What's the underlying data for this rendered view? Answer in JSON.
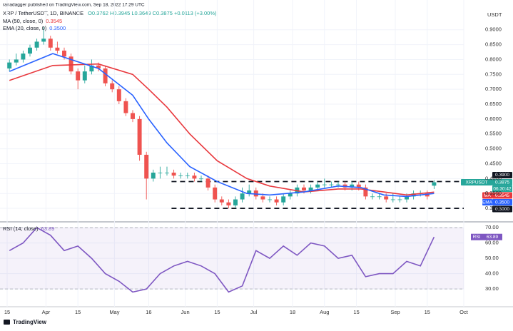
{
  "header": {
    "publisher": "ranadagger published on TradingView.com, Sep 18, 2022 17:29 UTC",
    "symbol": "XRP / TetherUSDT, 1D, BINANCE",
    "ohlc": "O0.3762 H0.3945 L0.3649 C0.3875 +0.0113 (+3.00%)",
    "currency": "USDT",
    "footer": "TradingView"
  },
  "chart_data": [
    {
      "type": "candlestick",
      "x": [
        1,
        4,
        7,
        10,
        13,
        16,
        19,
        22,
        25,
        28,
        31,
        34,
        37,
        40,
        43,
        46,
        49,
        52,
        55,
        58,
        61,
        64,
        67,
        70,
        73,
        76,
        79,
        82,
        85,
        88,
        91,
        94,
        97,
        100,
        103,
        106,
        109,
        112,
        115,
        118,
        121,
        124,
        127,
        130,
        133,
        136,
        139,
        142,
        145,
        148,
        151,
        154,
        157,
        160,
        163,
        166,
        169,
        172,
        175,
        178,
        181,
        184,
        187
      ],
      "open": [
        0.77,
        0.79,
        0.8,
        0.82,
        0.84,
        0.86,
        0.87,
        0.84,
        0.83,
        0.81,
        0.76,
        0.73,
        0.76,
        0.78,
        0.77,
        0.72,
        0.7,
        0.66,
        0.62,
        0.6,
        0.48,
        0.4,
        0.42,
        0.42,
        0.42,
        0.41,
        0.41,
        0.41,
        0.4,
        0.4,
        0.37,
        0.33,
        0.32,
        0.31,
        0.33,
        0.35,
        0.36,
        0.34,
        0.33,
        0.33,
        0.32,
        0.34,
        0.35,
        0.37,
        0.36,
        0.37,
        0.38,
        0.38,
        0.38,
        0.38,
        0.37,
        0.38,
        0.37,
        0.34,
        0.34,
        0.34,
        0.33,
        0.33,
        0.33,
        0.34,
        0.35,
        0.35,
        0.3762
      ],
      "high": [
        0.8,
        0.82,
        0.83,
        0.85,
        0.87,
        0.91,
        0.88,
        0.86,
        0.84,
        0.82,
        0.77,
        0.78,
        0.8,
        0.79,
        0.78,
        0.73,
        0.71,
        0.67,
        0.63,
        0.61,
        0.49,
        0.43,
        0.44,
        0.44,
        0.43,
        0.42,
        0.42,
        0.42,
        0.41,
        0.41,
        0.38,
        0.34,
        0.33,
        0.34,
        0.37,
        0.38,
        0.37,
        0.35,
        0.34,
        0.34,
        0.35,
        0.36,
        0.38,
        0.38,
        0.38,
        0.39,
        0.4,
        0.39,
        0.39,
        0.39,
        0.39,
        0.39,
        0.38,
        0.35,
        0.35,
        0.35,
        0.35,
        0.34,
        0.35,
        0.36,
        0.36,
        0.36,
        0.3945
      ],
      "low": [
        0.76,
        0.78,
        0.79,
        0.81,
        0.83,
        0.85,
        0.83,
        0.82,
        0.8,
        0.75,
        0.7,
        0.72,
        0.75,
        0.76,
        0.71,
        0.69,
        0.65,
        0.61,
        0.59,
        0.46,
        0.33,
        0.39,
        0.4,
        0.41,
        0.4,
        0.4,
        0.4,
        0.39,
        0.39,
        0.36,
        0.32,
        0.31,
        0.3,
        0.3,
        0.32,
        0.34,
        0.33,
        0.32,
        0.32,
        0.31,
        0.31,
        0.33,
        0.34,
        0.35,
        0.35,
        0.36,
        0.37,
        0.37,
        0.37,
        0.36,
        0.36,
        0.36,
        0.33,
        0.33,
        0.33,
        0.32,
        0.32,
        0.32,
        0.32,
        0.33,
        0.34,
        0.33,
        0.3649
      ],
      "close": [
        0.79,
        0.8,
        0.82,
        0.84,
        0.86,
        0.87,
        0.84,
        0.83,
        0.81,
        0.76,
        0.73,
        0.76,
        0.78,
        0.77,
        0.72,
        0.7,
        0.66,
        0.62,
        0.6,
        0.48,
        0.4,
        0.42,
        0.42,
        0.42,
        0.41,
        0.41,
        0.41,
        0.4,
        0.4,
        0.37,
        0.33,
        0.32,
        0.31,
        0.33,
        0.35,
        0.36,
        0.34,
        0.33,
        0.33,
        0.32,
        0.34,
        0.35,
        0.37,
        0.36,
        0.37,
        0.38,
        0.38,
        0.38,
        0.38,
        0.37,
        0.38,
        0.37,
        0.34,
        0.34,
        0.34,
        0.33,
        0.33,
        0.33,
        0.34,
        0.35,
        0.35,
        0.34,
        0.3875
      ],
      "up_color": "#26a69a",
      "down_color": "#ef5350",
      "price_tag": {
        "name": "XRPUSDT",
        "value": 0.3875,
        "label": "0.3875",
        "timer": "06:30:42"
      },
      "series": [
        {
          "name": "MA (50, close, 0)",
          "short_name": "MA",
          "last_label": "0.3545",
          "color": "#e8383d",
          "x": [
            1,
            20,
            40,
            55,
            62,
            70,
            80,
            92,
            105,
            115,
            130,
            145,
            155,
            165,
            175,
            187
          ],
          "values": [
            0.73,
            0.78,
            0.785,
            0.75,
            0.7,
            0.64,
            0.55,
            0.46,
            0.4,
            0.375,
            0.355,
            0.365,
            0.365,
            0.355,
            0.345,
            0.3545
          ]
        },
        {
          "name": "EMA (20, close, 0)",
          "short_name": "EMA",
          "last_label": "0.3500",
          "color": "#2962ff",
          "x": [
            1,
            20,
            40,
            55,
            62,
            70,
            80,
            92,
            105,
            115,
            130,
            145,
            155,
            165,
            175,
            187
          ],
          "values": [
            0.76,
            0.82,
            0.77,
            0.68,
            0.6,
            0.52,
            0.44,
            0.39,
            0.35,
            0.345,
            0.355,
            0.375,
            0.37,
            0.345,
            0.34,
            0.35
          ]
        }
      ],
      "levels": [
        {
          "value": 0.39,
          "label": "0.3900"
        },
        {
          "value": 0.3,
          "label": "0.3000"
        }
      ],
      "level_start": 72,
      "xlim": [
        -3.125,
        200
      ],
      "ylim": [
        0.257,
        1.0
      ],
      "yticks": [
        {
          "value": 0.3,
          "label": "0.3000"
        },
        {
          "value": 0.35,
          "label": "0.3500"
        },
        {
          "value": 0.4,
          "label": "0.4000"
        },
        {
          "value": 0.45,
          "label": "0.4500"
        },
        {
          "value": 0.5,
          "label": "0.5000"
        },
        {
          "value": 0.55,
          "label": "0.5500"
        },
        {
          "value": 0.6,
          "label": "0.6000"
        },
        {
          "value": 0.65,
          "label": "0.6500"
        },
        {
          "value": 0.7,
          "label": "0.7000"
        },
        {
          "value": 0.75,
          "label": "0.7500"
        },
        {
          "value": 0.8,
          "label": "0.8000"
        },
        {
          "value": 0.85,
          "label": "0.8500"
        },
        {
          "value": 0.9,
          "label": "0.9000"
        }
      ],
      "grid": true
    },
    {
      "type": "line",
      "series": [
        {
          "name": "RSI (14, close)",
          "short_name": "RSI",
          "last_label": "63.89",
          "color": "#7e57c2",
          "x": [
            1,
            7,
            13,
            19,
            25,
            31,
            37,
            43,
            49,
            55,
            61,
            67,
            73,
            79,
            85,
            91,
            97,
            103,
            109,
            115,
            121,
            127,
            133,
            139,
            145,
            151,
            157,
            163,
            169,
            175,
            181,
            187
          ],
          "values": [
            55,
            60,
            70,
            65,
            55,
            58,
            50,
            40,
            35,
            28,
            30,
            40,
            45,
            48,
            45,
            40,
            28,
            32,
            55,
            50,
            58,
            52,
            60,
            58,
            50,
            52,
            38,
            40,
            40,
            48,
            45,
            63.89
          ]
        }
      ],
      "band": [
        30,
        70
      ],
      "xlim": [
        -3.125,
        200
      ],
      "ylim": [
        18.4,
        73.3
      ],
      "yticks": [
        {
          "value": 30,
          "label": "30.00"
        },
        {
          "value": 40,
          "label": "40.00"
        },
        {
          "value": 50,
          "label": "50.00"
        },
        {
          "value": 60,
          "label": "60.00"
        },
        {
          "value": 70,
          "label": "70.00"
        }
      ],
      "xticks": [
        {
          "value": 0,
          "label": "15"
        },
        {
          "value": 17,
          "label": "Apr"
        },
        {
          "value": 31,
          "label": "15"
        },
        {
          "value": 47,
          "label": "May"
        },
        {
          "value": 62,
          "label": "16"
        },
        {
          "value": 78,
          "label": "Jun"
        },
        {
          "value": 92,
          "label": "15"
        },
        {
          "value": 108,
          "label": "Jul"
        },
        {
          "value": 125,
          "label": "18"
        },
        {
          "value": 139,
          "label": "Aug"
        },
        {
          "value": 153,
          "label": "15"
        },
        {
          "value": 170,
          "label": "Sep"
        },
        {
          "value": 184,
          "label": "15"
        },
        {
          "value": 200,
          "label": "Oct"
        }
      ],
      "grid": true
    }
  ]
}
